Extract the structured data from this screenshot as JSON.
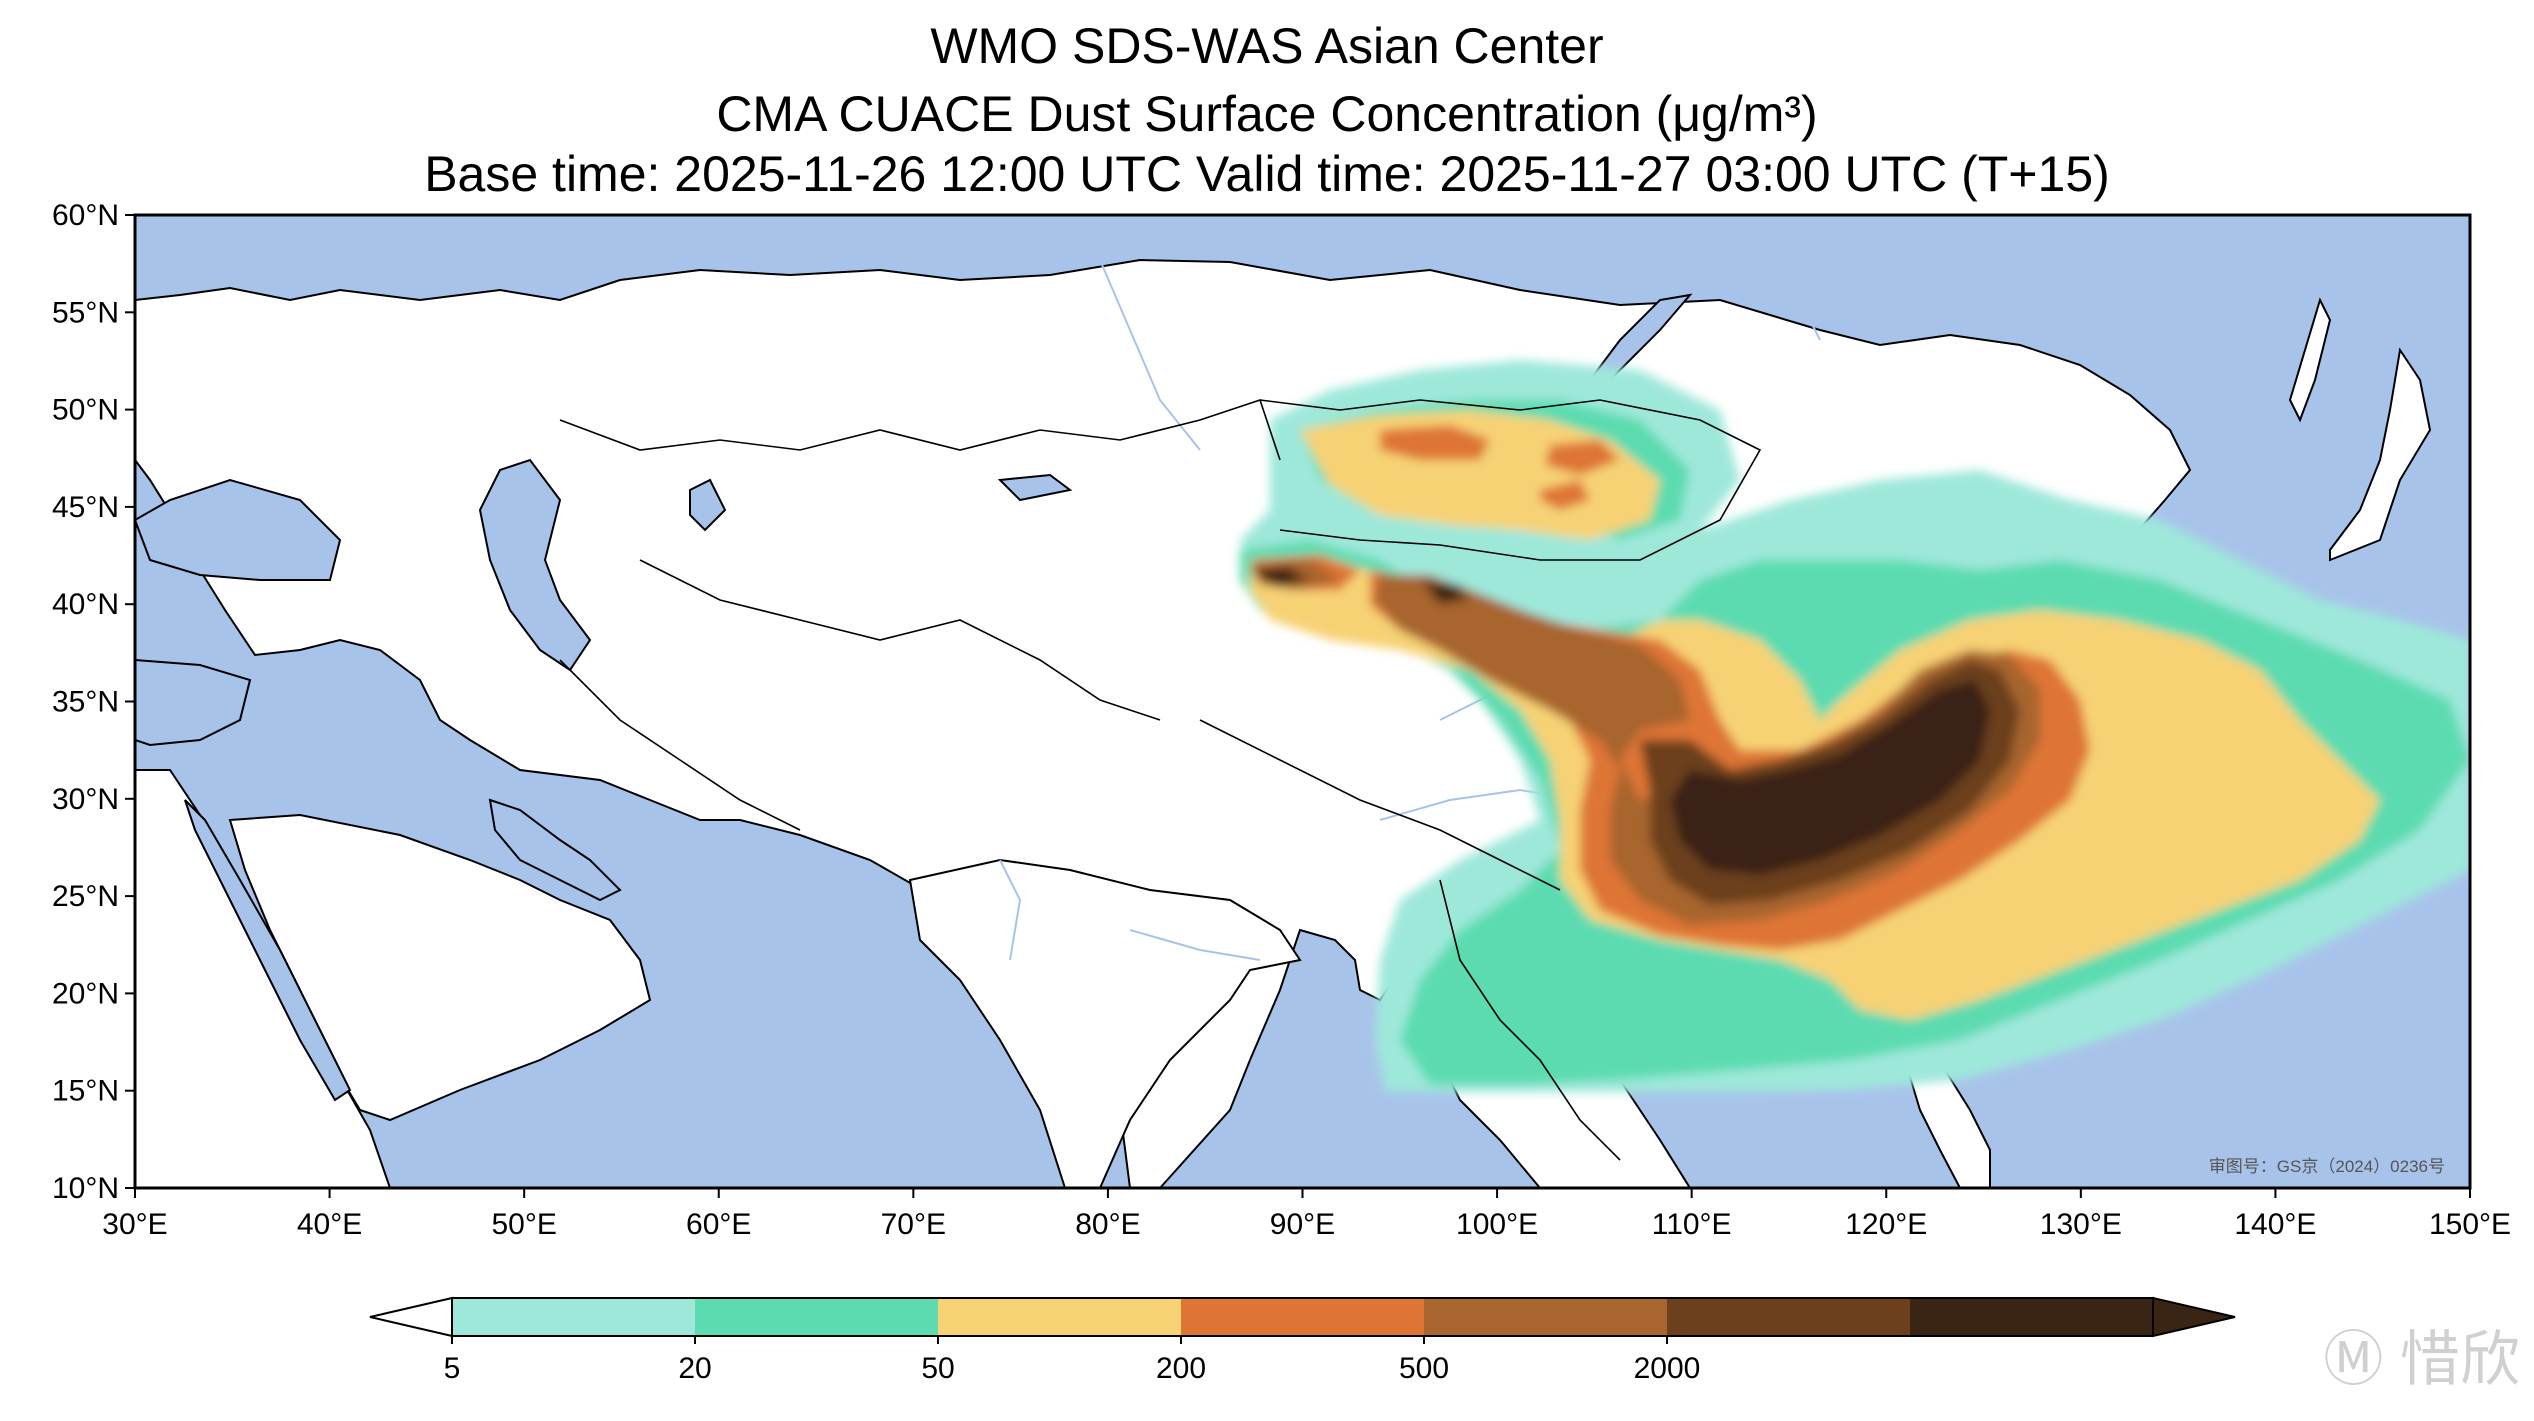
{
  "title": {
    "line1": "WMO SDS-WAS Asian Center",
    "line2": "CMA CUACE Dust Surface Concentration (μg/m³)",
    "line3": "Base time: 2025-11-26 12:00 UTC Valid time: 2025-11-27 03:00 UTC (T+15)"
  },
  "map": {
    "extent": {
      "lon_min": 30,
      "lon_max": 150,
      "lat_min": 10,
      "lat_max": 60
    },
    "lat_ticks": [
      {
        "value": 60,
        "label": "60°N"
      },
      {
        "value": 55,
        "label": "55°N"
      },
      {
        "value": 50,
        "label": "50°N"
      },
      {
        "value": 45,
        "label": "45°N"
      },
      {
        "value": 40,
        "label": "40°N"
      },
      {
        "value": 35,
        "label": "35°N"
      },
      {
        "value": 30,
        "label": "30°N"
      },
      {
        "value": 25,
        "label": "25°N"
      },
      {
        "value": 20,
        "label": "20°N"
      },
      {
        "value": 15,
        "label": "15°N"
      },
      {
        "value": 10,
        "label": "10°N"
      }
    ],
    "lon_ticks": [
      {
        "value": 30,
        "label": "30°E"
      },
      {
        "value": 40,
        "label": "40°E"
      },
      {
        "value": 50,
        "label": "50°E"
      },
      {
        "value": 60,
        "label": "60°E"
      },
      {
        "value": 70,
        "label": "70°E"
      },
      {
        "value": 80,
        "label": "80°E"
      },
      {
        "value": 90,
        "label": "90°E"
      },
      {
        "value": 100,
        "label": "100°E"
      },
      {
        "value": 110,
        "label": "110°E"
      },
      {
        "value": 120,
        "label": "120°E"
      },
      {
        "value": 130,
        "label": "130°E"
      },
      {
        "value": 140,
        "label": "140°E"
      },
      {
        "value": 150,
        "label": "150°E"
      }
    ],
    "approval_number": "审图号：GS京（2024）0236号",
    "ocean_color": "#a8c3ea",
    "land_color": "#ffffff",
    "border_color": "#000000"
  },
  "colorbar": {
    "boundaries": [
      5,
      20,
      50,
      200,
      500,
      2000
    ],
    "tick_labels": [
      "5",
      "20",
      "50",
      "200",
      "500",
      "2000"
    ],
    "colors": [
      "#9ee8da",
      "#5cdbb0",
      "#f7d275",
      "#de7535",
      "#a8652e",
      "#6c401c",
      "#3a2414"
    ],
    "extend": "both"
  },
  "watermark": "Ⓜ 惜欣"
}
